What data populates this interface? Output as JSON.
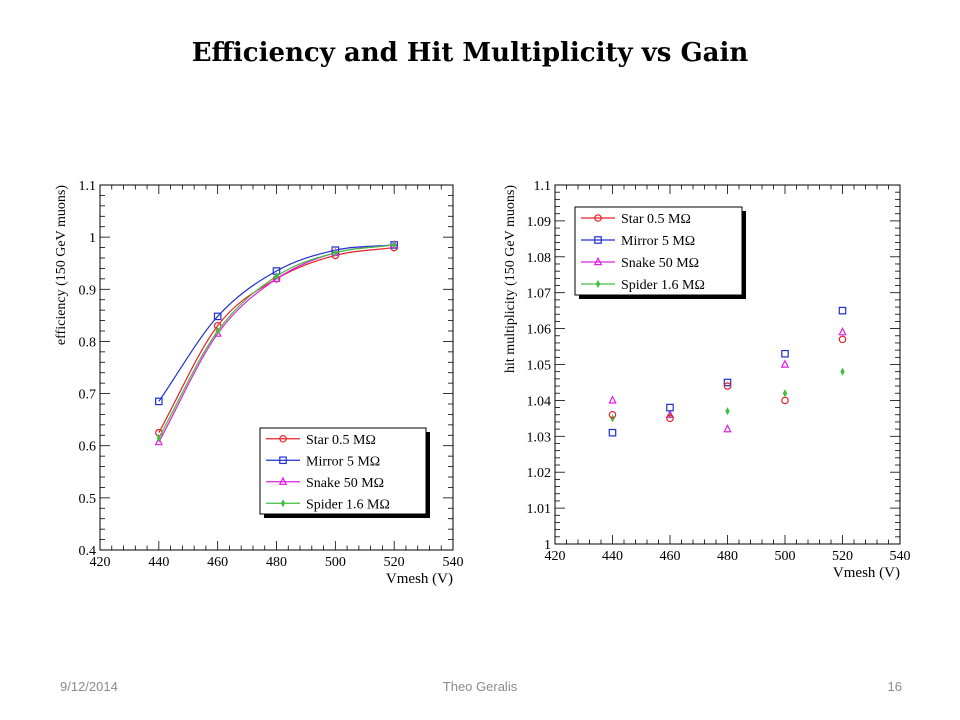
{
  "slide": {
    "title": "Efficiency and Hit Multiplicity vs Gain",
    "footer_date": "9/12/2014",
    "footer_author": "Theo Geralis",
    "footer_page": "16"
  },
  "colors": {
    "star": "#e8202a",
    "mirror": "#1f2fd0",
    "snake": "#e020e0",
    "spider": "#40c040"
  },
  "chart_data": [
    {
      "type": "line",
      "title": "",
      "xlabel": "Vmesh (V)",
      "ylabel": "efficiency (150 GeV muons)",
      "xlim": [
        420,
        540
      ],
      "ylim": [
        0.4,
        1.1
      ],
      "xticks": [
        420,
        440,
        460,
        480,
        500,
        520,
        540
      ],
      "yticks": [
        0.4,
        0.5,
        0.6,
        0.7,
        0.8,
        0.9,
        1.0,
        1.1
      ],
      "ytick_labels": [
        "0.4",
        "0.5",
        "0.6",
        "0.7",
        "0.8",
        "0.9",
        "1",
        "1.1"
      ],
      "legend_position": "bottom-right",
      "series": [
        {
          "name": "Star 0.5 MΩ",
          "key": "star",
          "marker": "circle",
          "x": [
            440,
            460,
            480,
            500,
            520
          ],
          "y": [
            0.625,
            0.83,
            0.92,
            0.965,
            0.98
          ]
        },
        {
          "name": "Mirror 5 MΩ",
          "key": "mirror",
          "marker": "square",
          "x": [
            440,
            460,
            480,
            500,
            520
          ],
          "y": [
            0.685,
            0.848,
            0.935,
            0.975,
            0.985
          ]
        },
        {
          "name": "Snake 50 MΩ",
          "key": "snake",
          "marker": "triangle",
          "x": [
            440,
            460,
            480,
            500,
            520
          ],
          "y": [
            0.607,
            0.815,
            0.92,
            0.97,
            0.985
          ]
        },
        {
          "name": "Spider 1.6 MΩ",
          "key": "spider",
          "marker": "diamond",
          "x": [
            440,
            460,
            480,
            500,
            520
          ],
          "y": [
            0.615,
            0.82,
            0.925,
            0.97,
            0.985
          ]
        }
      ]
    },
    {
      "type": "scatter",
      "title": "",
      "xlabel": "Vmesh (V)",
      "ylabel": "hit multiplicity (150 GeV muons)",
      "xlim": [
        420,
        540
      ],
      "ylim": [
        1.0,
        1.1
      ],
      "xticks": [
        420,
        440,
        460,
        480,
        500,
        520,
        540
      ],
      "yticks": [
        1.0,
        1.01,
        1.02,
        1.03,
        1.04,
        1.05,
        1.06,
        1.07,
        1.08,
        1.09,
        1.1
      ],
      "ytick_labels": [
        "1",
        "1.01",
        "1.02",
        "1.03",
        "1.04",
        "1.05",
        "1.06",
        "1.07",
        "1.08",
        "1.09",
        "1.1"
      ],
      "legend_position": "top-left",
      "series": [
        {
          "name": "Star 0.5 MΩ",
          "key": "star",
          "marker": "circle",
          "x": [
            440,
            460,
            480,
            500,
            520
          ],
          "y": [
            1.036,
            1.035,
            1.044,
            1.04,
            1.057
          ]
        },
        {
          "name": "Mirror 5 MΩ",
          "key": "mirror",
          "marker": "square",
          "x": [
            440,
            460,
            480,
            500,
            520
          ],
          "y": [
            1.031,
            1.038,
            1.045,
            1.053,
            1.065
          ]
        },
        {
          "name": "Snake 50 MΩ",
          "key": "snake",
          "marker": "triangle",
          "x": [
            440,
            460,
            480,
            500,
            520
          ],
          "y": [
            1.04,
            1.036,
            1.032,
            1.05,
            1.059
          ]
        },
        {
          "name": "Spider 1.6 MΩ",
          "key": "spider",
          "marker": "diamond",
          "x": [
            440,
            460,
            480,
            500,
            520
          ],
          "y": [
            1.035,
            1.036,
            1.037,
            1.042,
            1.048
          ]
        }
      ]
    }
  ]
}
